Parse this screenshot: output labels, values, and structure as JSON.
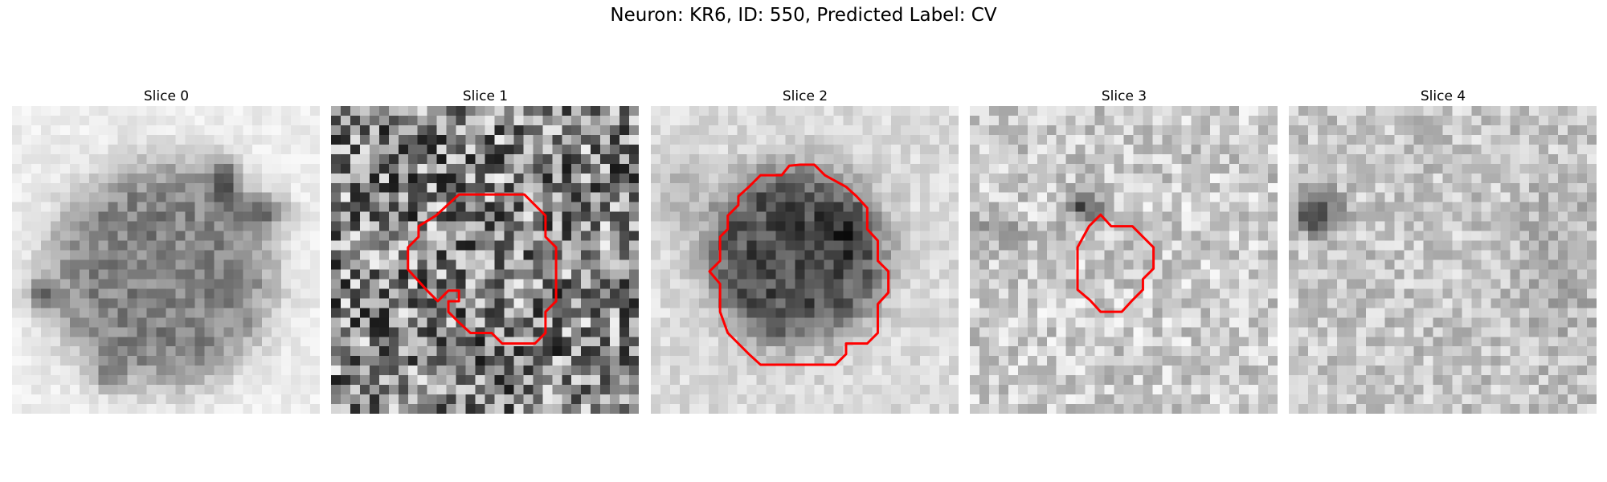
{
  "figure": {
    "title": "Neuron: KR6, ID: 550, Predicted Label: CV"
  },
  "panels": [
    {
      "title": "Slice 0",
      "has_contour": false
    },
    {
      "title": "Slice 1",
      "has_contour": true
    },
    {
      "title": "Slice 2",
      "has_contour": true
    },
    {
      "title": "Slice 3",
      "has_contour": true
    },
    {
      "title": "Slice 4",
      "has_contour": false
    }
  ],
  "colors": {
    "contour": "#ff0000",
    "background": "#ffffff"
  }
}
